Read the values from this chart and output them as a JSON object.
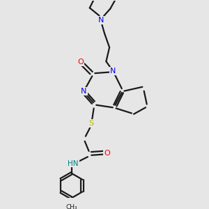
{
  "bg_color": "#e6e6e6",
  "bond_color": "#1a1a1a",
  "N_color": "#0000ee",
  "O_color": "#ee0000",
  "S_color": "#b8b800",
  "NH_color": "#008080",
  "line_width": 1.6,
  "figsize": [
    3.0,
    3.0
  ],
  "dpi": 100,
  "xlim": [
    0,
    10
  ],
  "ylim": [
    0,
    12
  ]
}
